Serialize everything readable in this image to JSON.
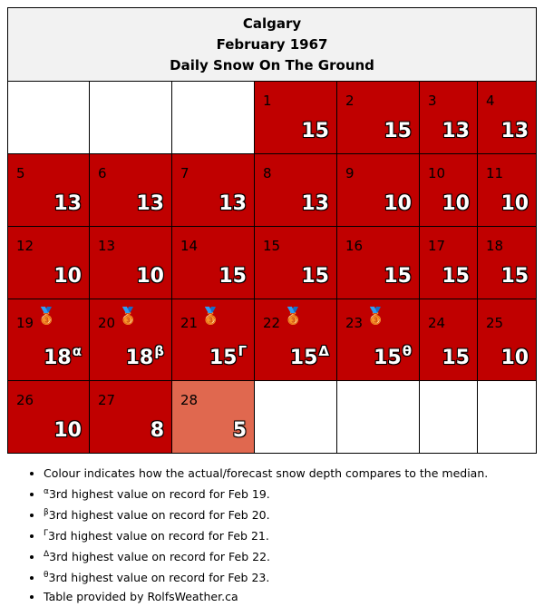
{
  "header": {
    "city": "Calgary",
    "month": "February 1967",
    "subtitle": "Daily Snow On The Ground"
  },
  "colors": {
    "above_median": "#c00000",
    "slightly_above": "#e0684f",
    "border": "#000000",
    "header_bg": "#f2f2f2"
  },
  "weeks": [
    [
      {
        "day": "",
        "value": "",
        "sup": "",
        "medal": false,
        "color": "empty"
      },
      {
        "day": "",
        "value": "",
        "sup": "",
        "medal": false,
        "color": "empty"
      },
      {
        "day": "",
        "value": "",
        "sup": "",
        "medal": false,
        "color": "empty"
      },
      {
        "day": "1",
        "value": "15",
        "sup": "",
        "medal": false,
        "color": "red"
      },
      {
        "day": "2",
        "value": "15",
        "sup": "",
        "medal": false,
        "color": "red"
      },
      {
        "day": "3",
        "value": "13",
        "sup": "",
        "medal": false,
        "color": "red"
      },
      {
        "day": "4",
        "value": "13",
        "sup": "",
        "medal": false,
        "color": "red"
      }
    ],
    [
      {
        "day": "5",
        "value": "13",
        "sup": "",
        "medal": false,
        "color": "red"
      },
      {
        "day": "6",
        "value": "13",
        "sup": "",
        "medal": false,
        "color": "red"
      },
      {
        "day": "7",
        "value": "13",
        "sup": "",
        "medal": false,
        "color": "red"
      },
      {
        "day": "8",
        "value": "13",
        "sup": "",
        "medal": false,
        "color": "red"
      },
      {
        "day": "9",
        "value": "10",
        "sup": "",
        "medal": false,
        "color": "red"
      },
      {
        "day": "10",
        "value": "10",
        "sup": "",
        "medal": false,
        "color": "red"
      },
      {
        "day": "11",
        "value": "10",
        "sup": "",
        "medal": false,
        "color": "red"
      }
    ],
    [
      {
        "day": "12",
        "value": "10",
        "sup": "",
        "medal": false,
        "color": "red"
      },
      {
        "day": "13",
        "value": "10",
        "sup": "",
        "medal": false,
        "color": "red"
      },
      {
        "day": "14",
        "value": "15",
        "sup": "",
        "medal": false,
        "color": "red"
      },
      {
        "day": "15",
        "value": "15",
        "sup": "",
        "medal": false,
        "color": "red"
      },
      {
        "day": "16",
        "value": "15",
        "sup": "",
        "medal": false,
        "color": "red"
      },
      {
        "day": "17",
        "value": "15",
        "sup": "",
        "medal": false,
        "color": "red"
      },
      {
        "day": "18",
        "value": "15",
        "sup": "",
        "medal": false,
        "color": "red"
      }
    ],
    [
      {
        "day": "19",
        "value": "18",
        "sup": "α",
        "medal": true,
        "color": "red"
      },
      {
        "day": "20",
        "value": "18",
        "sup": "β",
        "medal": true,
        "color": "red"
      },
      {
        "day": "21",
        "value": "15",
        "sup": "Γ",
        "medal": true,
        "color": "red"
      },
      {
        "day": "22",
        "value": "15",
        "sup": "Δ",
        "medal": true,
        "color": "red"
      },
      {
        "day": "23",
        "value": "15",
        "sup": "θ",
        "medal": true,
        "color": "red"
      },
      {
        "day": "24",
        "value": "15",
        "sup": "",
        "medal": false,
        "color": "red"
      },
      {
        "day": "25",
        "value": "10",
        "sup": "",
        "medal": false,
        "color": "red"
      }
    ],
    [
      {
        "day": "26",
        "value": "10",
        "sup": "",
        "medal": false,
        "color": "red"
      },
      {
        "day": "27",
        "value": "8",
        "sup": "",
        "medal": false,
        "color": "red"
      },
      {
        "day": "28",
        "value": "5",
        "sup": "",
        "medal": false,
        "color": "salmon"
      },
      {
        "day": "",
        "value": "",
        "sup": "",
        "medal": false,
        "color": "empty"
      },
      {
        "day": "",
        "value": "",
        "sup": "",
        "medal": false,
        "color": "empty"
      },
      {
        "day": "",
        "value": "",
        "sup": "",
        "medal": false,
        "color": "empty"
      },
      {
        "day": "",
        "value": "",
        "sup": "",
        "medal": false,
        "color": "empty"
      }
    ]
  ],
  "notes": [
    {
      "sup": "",
      "text": "Colour indicates how the actual/forecast snow depth compares to the median."
    },
    {
      "sup": "α",
      "text": "3rd highest value on record for Feb 19."
    },
    {
      "sup": "β",
      "text": "3rd highest value on record for Feb 20."
    },
    {
      "sup": "Γ",
      "text": "3rd highest value on record for Feb 21."
    },
    {
      "sup": "Δ",
      "text": "3rd highest value on record for Feb 22."
    },
    {
      "sup": "θ",
      "text": "3rd highest value on record for Feb 23."
    },
    {
      "sup": "",
      "text": "Table provided by RolfsWeather.ca"
    }
  ]
}
